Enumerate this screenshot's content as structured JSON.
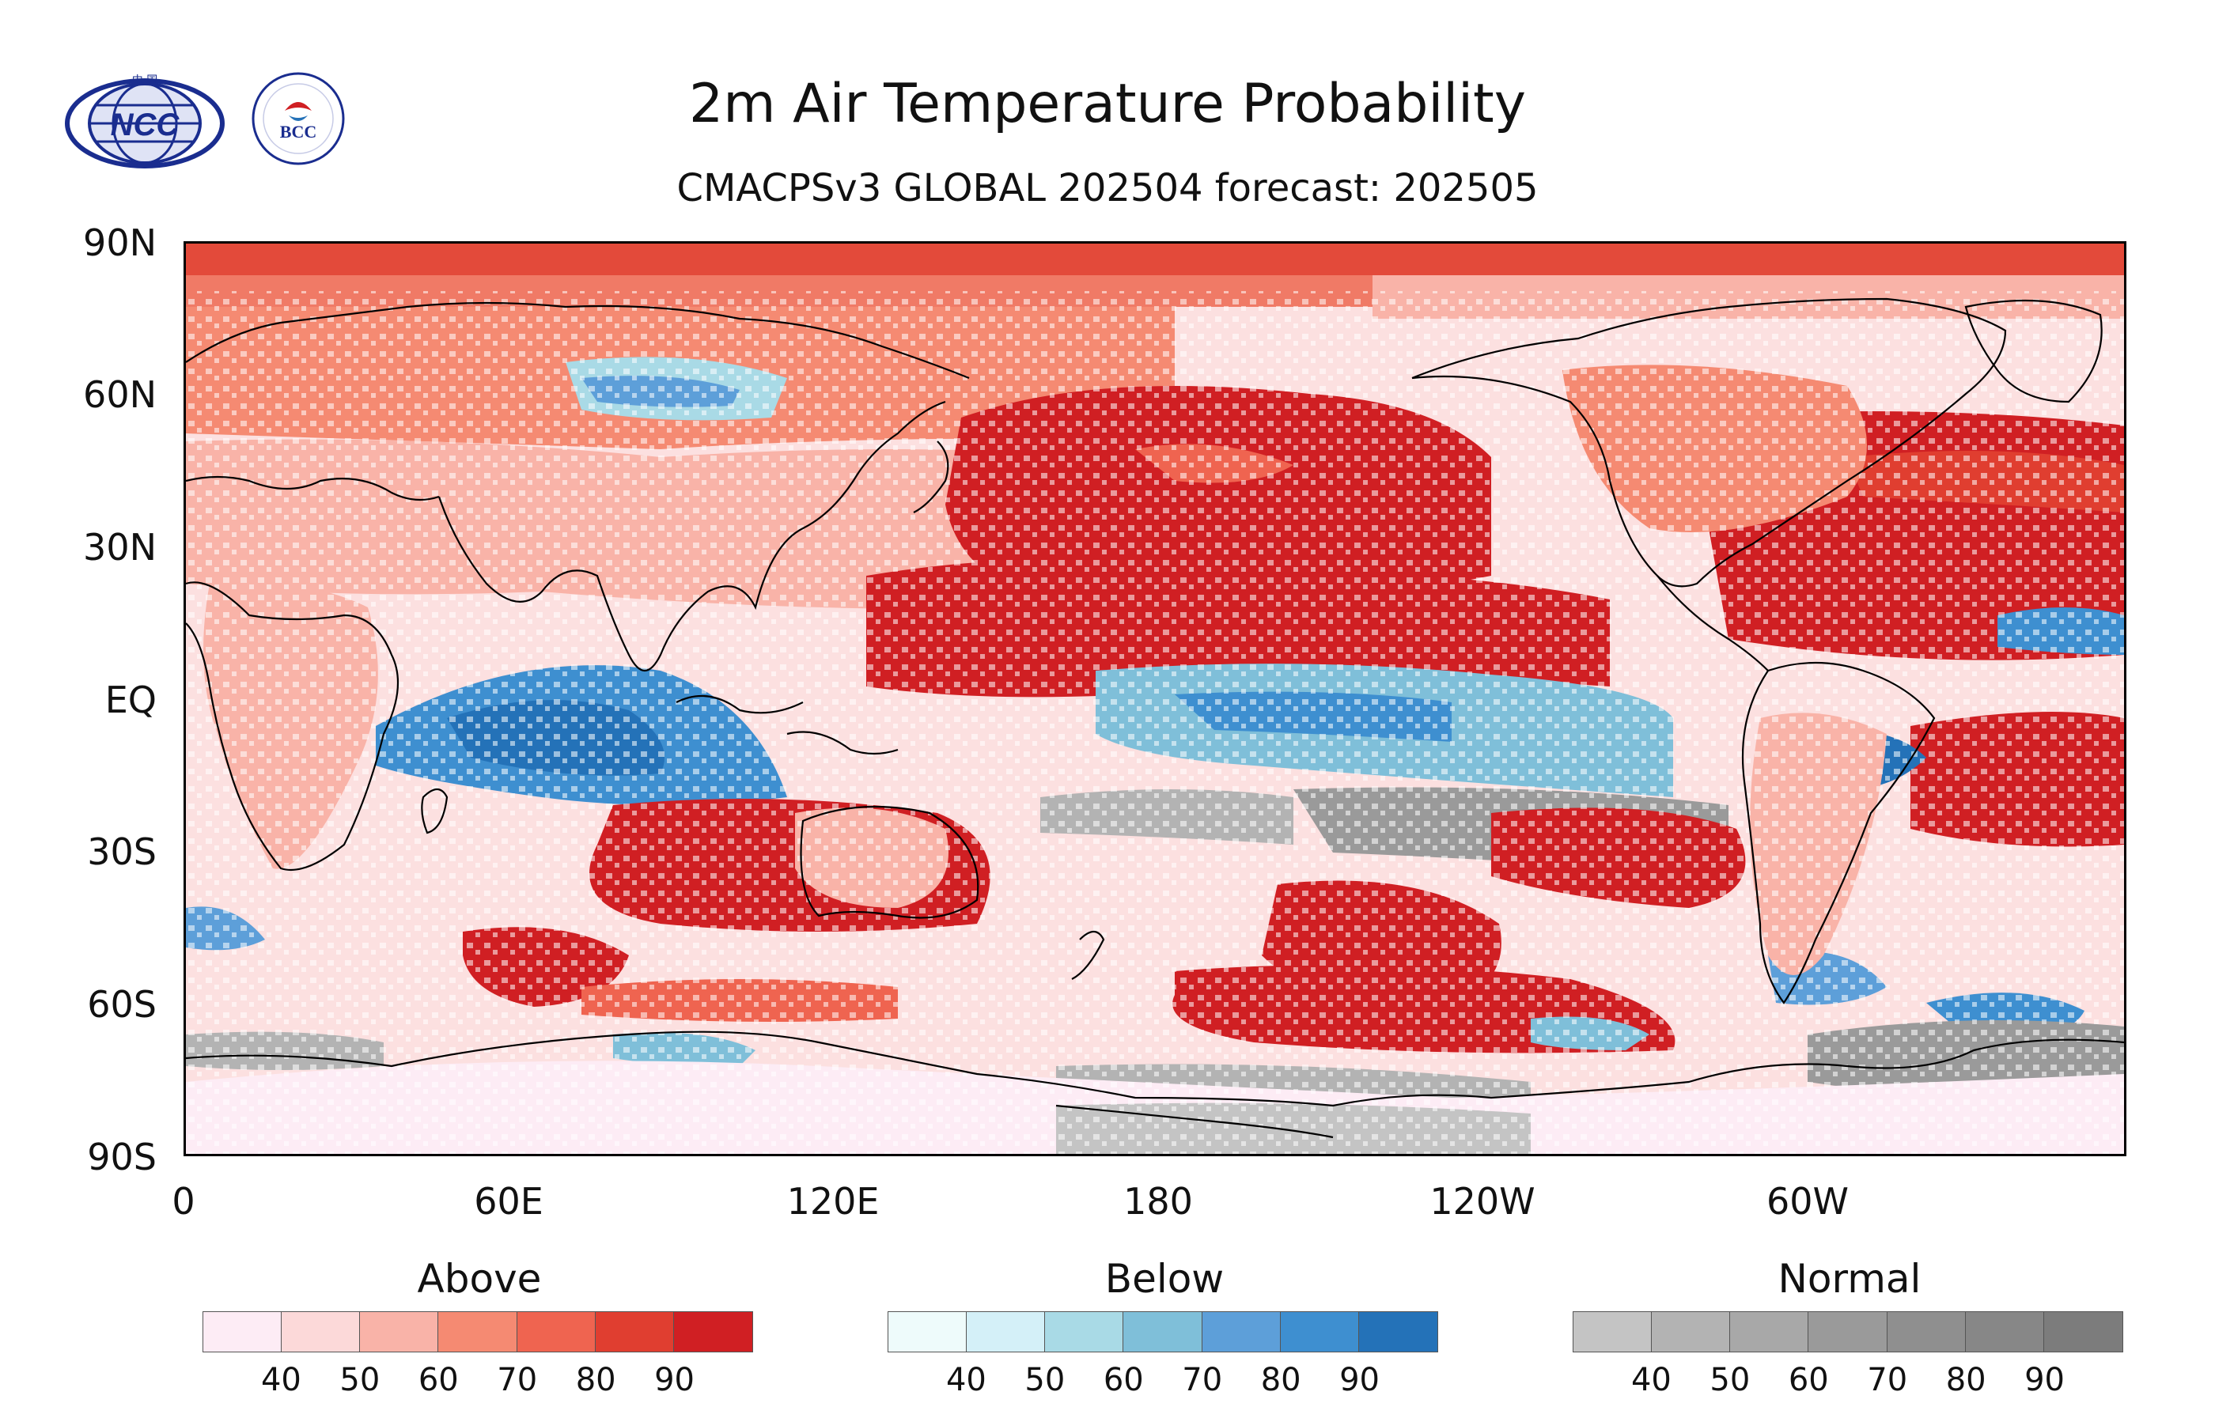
{
  "title": "2m Air Temperature Probability",
  "subtitle": "CMACPSv3 GLOBAL 202504 forecast: 202505",
  "logos": [
    {
      "name": "NCC",
      "text": "NCC",
      "small_text": "中 国",
      "color": "#1a2d8f"
    },
    {
      "name": "BCC",
      "text": "BCC",
      "color": "#1a2d8f"
    }
  ],
  "axes": {
    "lat_labels": [
      "90N",
      "60N",
      "30N",
      "EQ",
      "30S",
      "60S",
      "90S"
    ],
    "lon_labels": [
      "0",
      "60E",
      "120E",
      "180",
      "120W",
      "60W"
    ]
  },
  "map": {
    "projection": "cylindrical equidistant",
    "lon_range": [
      0,
      360
    ],
    "lat_range": [
      -90,
      90
    ],
    "coastlines": true
  },
  "legends": [
    {
      "title": "Above",
      "ticks": [
        "40",
        "50",
        "60",
        "70",
        "80",
        "90"
      ],
      "colors": [
        "#fdecf5",
        "#fcd9d9",
        "#f9b3a8",
        "#f58a72",
        "#ef6450",
        "#e03e30",
        "#d01f23"
      ]
    },
    {
      "title": "Below",
      "ticks": [
        "40",
        "50",
        "60",
        "70",
        "80",
        "90"
      ],
      "colors": [
        "#eefbfb",
        "#d4f0f8",
        "#a9dae6",
        "#7fbfd9",
        "#5d9fd9",
        "#3e8fd0",
        "#2472b8"
      ]
    },
    {
      "title": "Normal",
      "ticks": [
        "40",
        "50",
        "60",
        "70",
        "80",
        "90"
      ],
      "colors": [
        "#c4c4c4",
        "#b3b3b3",
        "#a8a8a8",
        "#9a9a9a",
        "#8f8f8f",
        "#878787",
        "#7c7c7c"
      ]
    }
  ]
}
